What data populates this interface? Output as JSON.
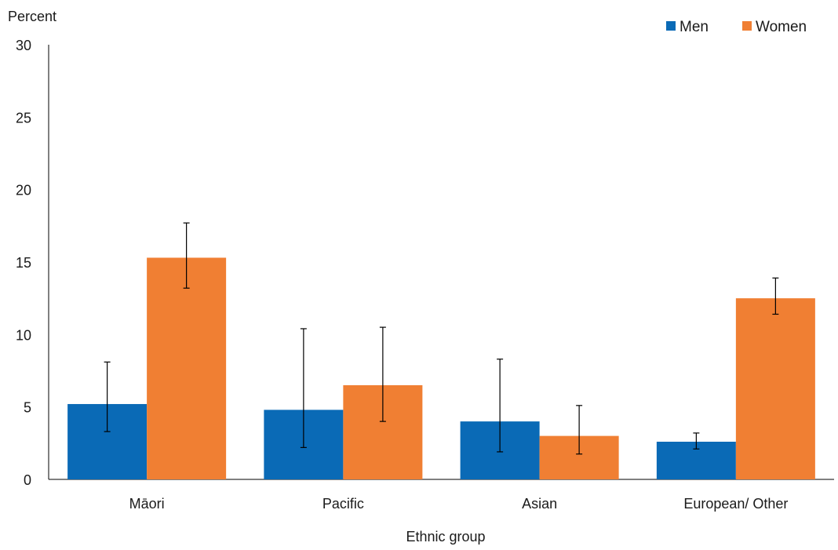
{
  "chart_data": {
    "type": "bar",
    "title": "",
    "ylabel": "Percent",
    "xlabel": "Ethnic group",
    "ylim": [
      0,
      30
    ],
    "yticks": [
      0,
      5,
      10,
      15,
      20,
      25,
      30
    ],
    "categories": [
      "Māori",
      "Pacific",
      "Asian",
      "European/ Other"
    ],
    "series": [
      {
        "name": "Men",
        "color": "#0a6ab6",
        "values": [
          5.2,
          4.8,
          4.0,
          2.6
        ],
        "error_low": [
          3.3,
          2.2,
          1.9,
          2.1
        ],
        "error_high": [
          8.1,
          10.4,
          8.3,
          3.2
        ]
      },
      {
        "name": "Women",
        "color": "#f07f33",
        "values": [
          15.3,
          6.5,
          3.0,
          12.5
        ],
        "error_low": [
          13.2,
          4.0,
          1.75,
          11.4
        ],
        "error_high": [
          17.7,
          10.5,
          5.1,
          13.9
        ]
      }
    ],
    "legend_position": "top-right",
    "grid": false
  }
}
